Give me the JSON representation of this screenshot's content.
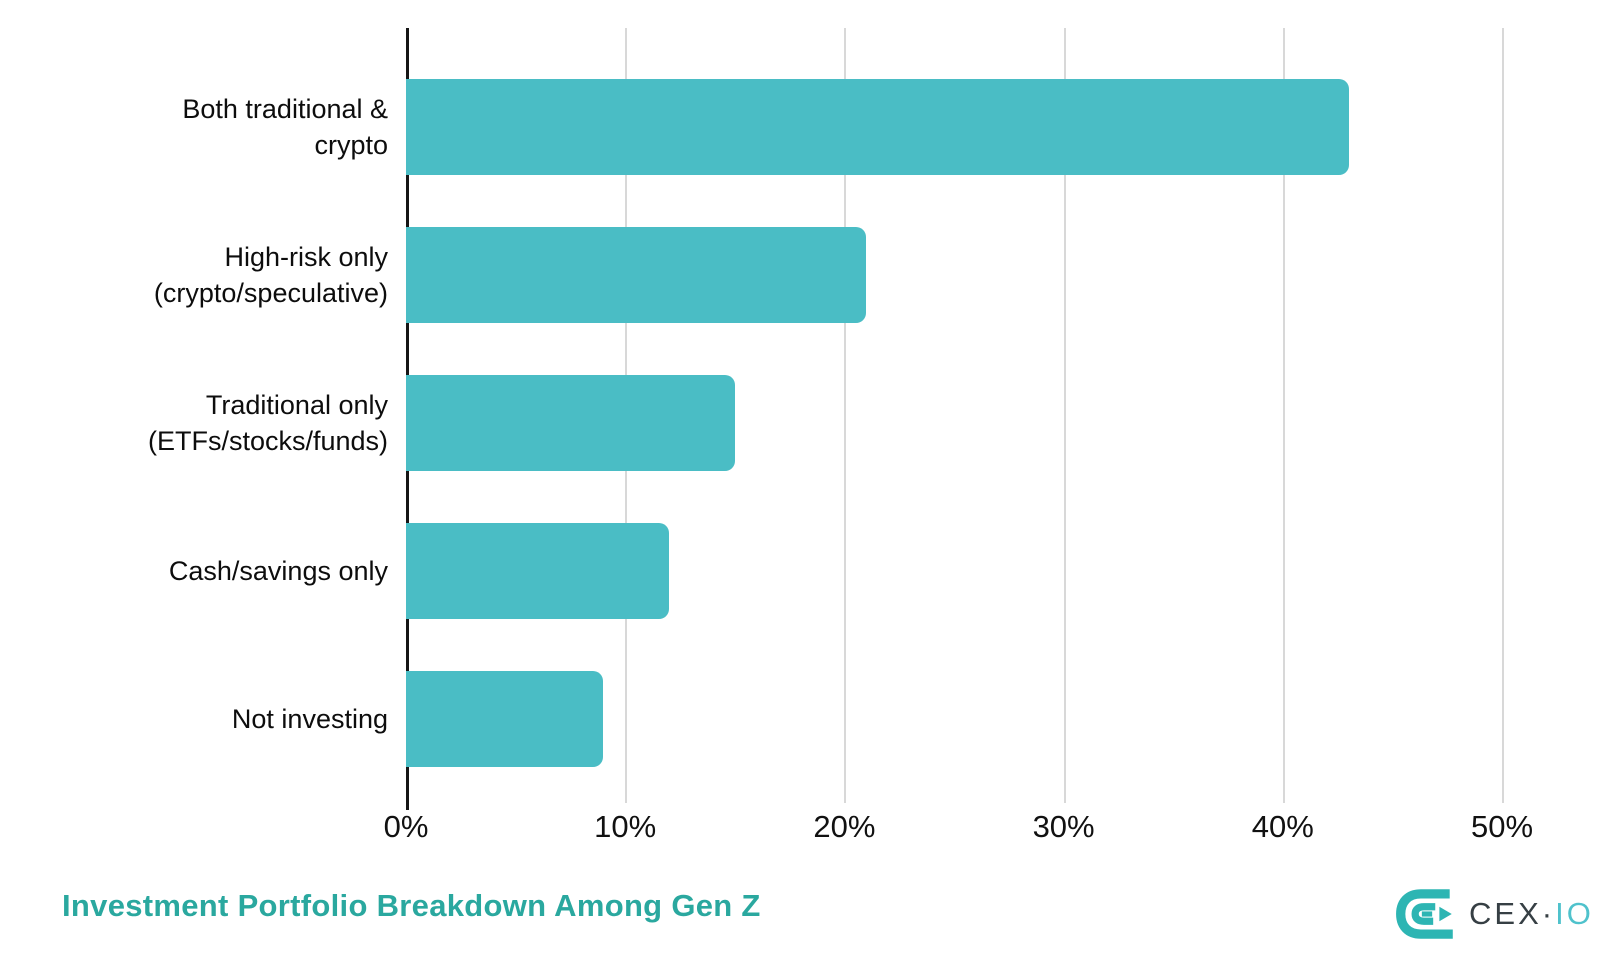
{
  "chart_data": {
    "type": "bar",
    "orientation": "horizontal",
    "title": "Investment Portfolio Breakdown Among Gen Z",
    "categories": [
      "Both traditional &\ncrypto",
      "High-risk only\n(crypto/speculative)",
      "Traditional only\n(ETFs/stocks/funds)",
      "Cash/savings only",
      "Not investing"
    ],
    "values": [
      43,
      21,
      15,
      12,
      9
    ],
    "value_unit": "%",
    "x_ticks": [
      "0%",
      "10%",
      "20%",
      "30%",
      "40%",
      "50%"
    ],
    "x_tick_values": [
      0,
      10,
      20,
      30,
      40,
      50
    ],
    "xlim": [
      0,
      50
    ],
    "grid": "vertical",
    "legend_position": "none",
    "colors": {
      "bar": "#4ABDC5",
      "title": "#2AA89F",
      "gridline": "#D8D8D8",
      "axis": "#161616",
      "label_text": "#0D0D0D"
    }
  },
  "branding": {
    "logo_icon": "cexio-monogram-icon",
    "wordmark_dark": "CEX·",
    "wordmark_teal": "IO",
    "colors": {
      "icon_teal": "#2DB5B3",
      "dark_text": "#363F44",
      "teal_text": "#4FC2CC"
    }
  }
}
